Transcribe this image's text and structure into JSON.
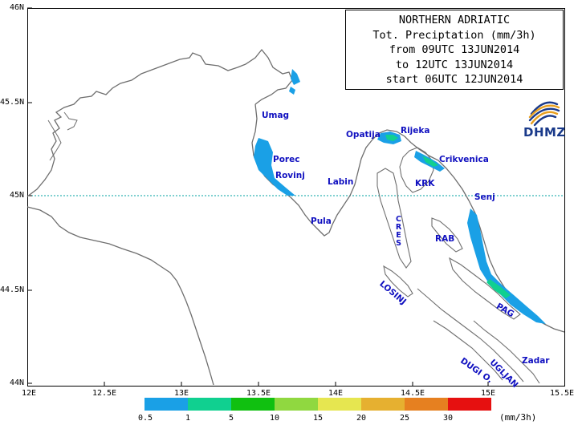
{
  "title_lines": [
    "NORTHERN ADRIATIC",
    "Tot. Preciptation (mm/3h)",
    "from 09UTC 13JUN2014",
    "to 12UTC 13JUN2014",
    "start 06UTC 12JUN2014"
  ],
  "logo_text": "DHMZ",
  "logo_colors": {
    "navy": "#1a3a8a",
    "gold": "#e8a020"
  },
  "lat_labels": [
    "46N",
    "45.5N",
    "45N",
    "44.5N",
    "44N"
  ],
  "lon_labels": [
    "12E",
    "12.5E",
    "13E",
    "13.5E",
    "14E",
    "14.5E",
    "15E",
    "15.5E"
  ],
  "places": {
    "umag": "Umag",
    "porec": "Porec",
    "rovinj": "Rovinj",
    "pula": "Pula",
    "labin": "Labin",
    "opatija": "Opatija",
    "rijeka": "Rijeka",
    "crikvenica": "Crikvenica",
    "krk": "KRK",
    "senj": "Senj",
    "rab": "RAB",
    "cres": "CRES",
    "losinj": "LOSINJ",
    "pag": "PAG",
    "zadar": "Zadar",
    "ugljan": "UGLJAN",
    "dugi": "DUGI O."
  },
  "legend": {
    "unit": "(mm/3h)",
    "labels": [
      "0.5",
      "1",
      "5",
      "10",
      "15",
      "20",
      "25",
      "30"
    ],
    "colors": [
      "#1aa0e6",
      "#10d090",
      "#10c010",
      "#90d840",
      "#e6e650",
      "#e6b030",
      "#e68020",
      "#e61010"
    ]
  },
  "colors": {
    "coast": "#6e6e6e",
    "gridline": "#00a0a0",
    "precip_light": "#1aa0e6",
    "precip_mid": "#10d090"
  }
}
